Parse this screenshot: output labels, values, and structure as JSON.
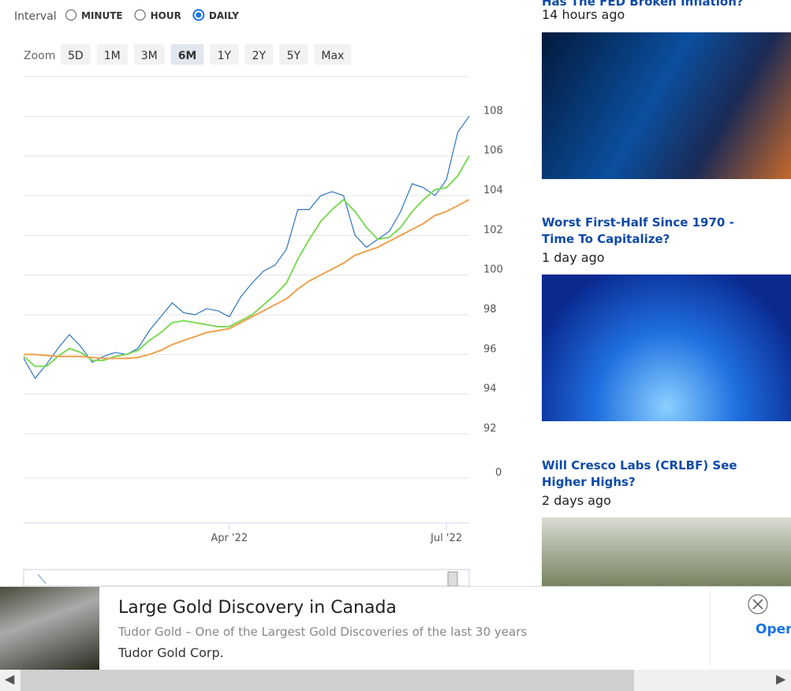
{
  "controls": {
    "interval_label": "Interval",
    "intervals": [
      "MINUTE",
      "HOUR",
      "DAILY"
    ],
    "selected_interval": 2,
    "zoom_label": "Zoom",
    "zooms": [
      "5D",
      "1M",
      "3M",
      "6M",
      "1Y",
      "2Y",
      "5Y",
      "Max"
    ],
    "selected_zoom": 3
  },
  "chart_data": {
    "type": "line",
    "categories": [
      null,
      null,
      null,
      null,
      null,
      null,
      null,
      null,
      null,
      null,
      null,
      null,
      null,
      null,
      null,
      null,
      null,
      null,
      "Apr '22",
      null,
      null,
      null,
      null,
      null,
      null,
      null,
      null,
      null,
      null,
      null,
      null,
      null,
      null,
      null,
      null,
      null,
      null,
      "Jul '22",
      null,
      null
    ],
    "series": [
      {
        "color": "#2f75c0",
        "values": [
          95.8,
          94.8,
          95.5,
          96.3,
          97.0,
          96.4,
          95.6,
          95.9,
          96.1,
          96.0,
          96.3,
          97.2,
          97.9,
          98.6,
          98.1,
          98.0,
          98.3,
          98.2,
          97.9,
          98.9,
          99.6,
          100.2,
          100.5,
          101.3,
          103.3,
          103.3,
          104.0,
          104.2,
          104.0,
          102.0,
          101.4,
          101.8,
          102.2,
          103.2,
          104.6,
          104.4,
          104.0,
          104.8,
          107.2,
          108.0
        ]
      },
      {
        "color": "#7ed957",
        "values": [
          95.9,
          95.4,
          95.4,
          95.9,
          96.3,
          96.1,
          95.7,
          95.7,
          95.9,
          96.0,
          96.2,
          96.7,
          97.1,
          97.6,
          97.7,
          97.6,
          97.5,
          97.4,
          97.4,
          97.7,
          98.0,
          98.5,
          99.0,
          99.6,
          100.8,
          101.8,
          102.7,
          103.3,
          103.8,
          103.2,
          102.4,
          101.8,
          101.9,
          102.4,
          103.2,
          103.8,
          104.3,
          104.4,
          105.0,
          106.0
        ]
      },
      {
        "color": "#f0a050",
        "values": [
          96.0,
          96.0,
          95.95,
          95.9,
          95.9,
          95.9,
          95.85,
          95.8,
          95.8,
          95.8,
          95.85,
          96.0,
          96.2,
          96.5,
          96.7,
          96.9,
          97.1,
          97.2,
          97.3,
          97.6,
          97.9,
          98.2,
          98.5,
          98.8,
          99.3,
          99.7,
          100.0,
          100.3,
          100.6,
          101.0,
          101.2,
          101.4,
          101.7,
          102.0,
          102.3,
          102.6,
          103.0,
          103.2,
          103.5,
          103.8
        ]
      }
    ],
    "ylim": [
      92,
      110
    ],
    "yticks": [
      92,
      94,
      96,
      98,
      100,
      102,
      104,
      106,
      108
    ],
    "grid": true,
    "volume_ticks": [
      0
    ]
  },
  "news": [
    {
      "title": "Has The FED Broken Inflation?",
      "time": "14 hours ago"
    },
    {
      "title": "Worst First-Half Since 1970 - Time To Capitalize?",
      "time": "1 day ago"
    },
    {
      "title": "Will Cresco Labs (CRLBF) See Higher Highs?",
      "time": "2 days ago"
    }
  ],
  "ad": {
    "title": "Large Gold Discovery in Canada",
    "text": "Tudor Gold – One of the Largest Gold Discoveries of the last 30 years",
    "sponsor": "Tudor Gold Corp.",
    "button": "Open"
  }
}
